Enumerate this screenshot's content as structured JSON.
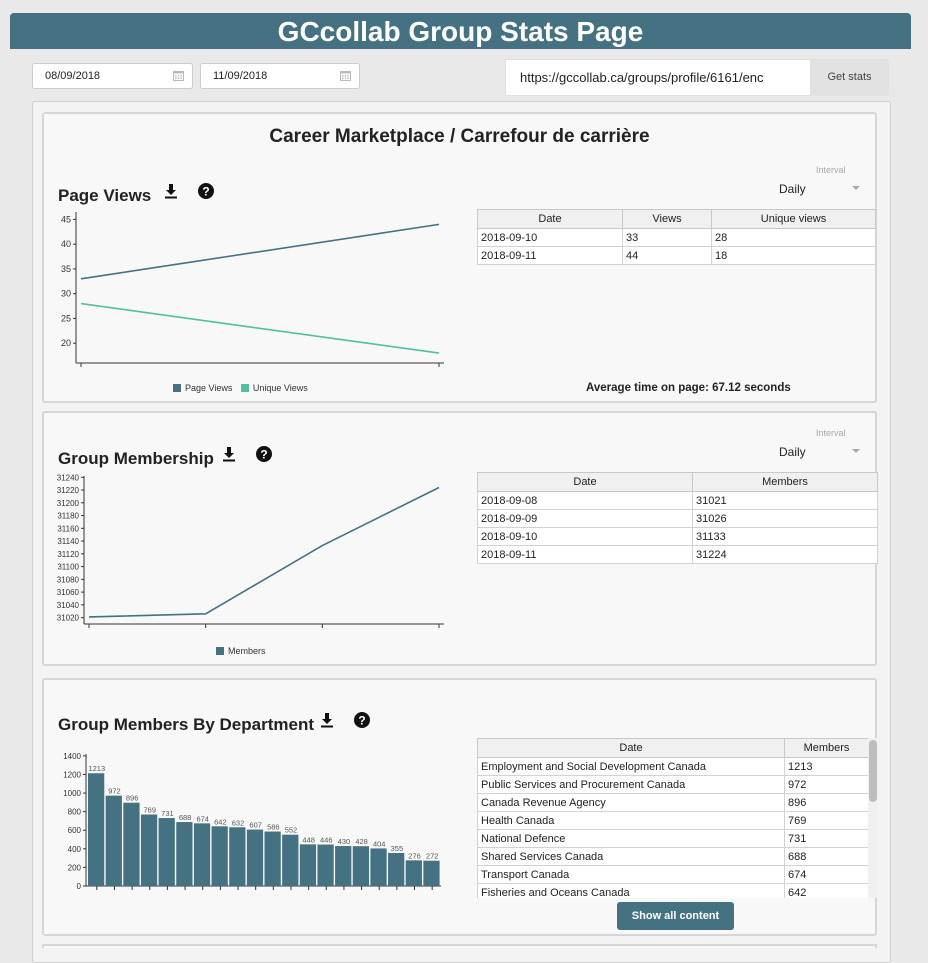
{
  "header": {
    "title": "GCcollab Group Stats Page"
  },
  "controls": {
    "start_date": "08/09/2018",
    "end_date": "11/09/2018",
    "url": "https://gccollab.ca/groups/profile/6161/enc",
    "get_stats_label": "Get stats"
  },
  "group_title": "Career Marketplace / Carrefour de carrière",
  "page_views": {
    "title": "Page Views",
    "interval_label": "Interval",
    "interval_value": "Daily",
    "columns": [
      "Date",
      "Views",
      "Unique views"
    ],
    "rows": [
      [
        "2018-09-10",
        "33",
        "28"
      ],
      [
        "2018-09-11",
        "44",
        "18"
      ]
    ],
    "avg_time": "Average time on page: 67.12 seconds",
    "legend": [
      "Page Views",
      "Unique Views"
    ]
  },
  "membership": {
    "title": "Group Membership",
    "interval_label": "Interval",
    "interval_value": "Daily",
    "columns": [
      "Date",
      "Members"
    ],
    "rows": [
      [
        "2018-09-08",
        "31021"
      ],
      [
        "2018-09-09",
        "31026"
      ],
      [
        "2018-09-10",
        "31133"
      ],
      [
        "2018-09-11",
        "31224"
      ]
    ],
    "legend": [
      "Members"
    ]
  },
  "departments": {
    "title": "Group Members By Department",
    "columns": [
      "Date",
      "Members"
    ],
    "rows": [
      [
        "Employment and Social Development Canada",
        "1213"
      ],
      [
        "Public Services and Procurement Canada",
        "972"
      ],
      [
        "Canada Revenue Agency",
        "896"
      ],
      [
        "Health Canada",
        "769"
      ],
      [
        "National Defence",
        "731"
      ],
      [
        "Shared Services Canada",
        "688"
      ],
      [
        "Transport Canada",
        "674"
      ],
      [
        "Fisheries and Oceans Canada",
        "642"
      ]
    ],
    "show_all_label": "Show all content"
  },
  "colors": {
    "primary": "#457282",
    "secondary": "#4fc1a0"
  },
  "chart_data": [
    {
      "type": "line",
      "x": [
        "2018-09-10",
        "2018-09-11"
      ],
      "series": [
        {
          "name": "Page Views",
          "values": [
            33,
            44
          ],
          "color": "#457282"
        },
        {
          "name": "Unique Views",
          "values": [
            28,
            18
          ],
          "color": "#4fc1a0"
        }
      ],
      "yticks": [
        20,
        25,
        30,
        35,
        40,
        45
      ],
      "ylim": [
        16,
        46.5
      ],
      "grid": false,
      "legend": "bottom"
    },
    {
      "type": "line",
      "x": [
        "2018-09-08",
        "2018-09-09",
        "2018-09-10",
        "2018-09-11"
      ],
      "series": [
        {
          "name": "Members",
          "values": [
            31021,
            31026,
            31133,
            31224
          ],
          "color": "#457282"
        }
      ],
      "yticks": [
        31020,
        31040,
        31060,
        31080,
        31100,
        31120,
        31140,
        31160,
        31180,
        31200,
        31220,
        31240
      ],
      "ylim": [
        31010,
        31242
      ],
      "grid": false,
      "legend": "bottom"
    },
    {
      "type": "bar",
      "values": [
        1213,
        972,
        896,
        769,
        731,
        688,
        674,
        642,
        632,
        607,
        586,
        552,
        448,
        446,
        430,
        428,
        404,
        355,
        276,
        272
      ],
      "yticks": [
        0,
        200,
        400,
        600,
        800,
        1000,
        1200,
        1400
      ],
      "ylim": [
        0,
        1420
      ],
      "color": "#457282",
      "grid": false
    }
  ]
}
